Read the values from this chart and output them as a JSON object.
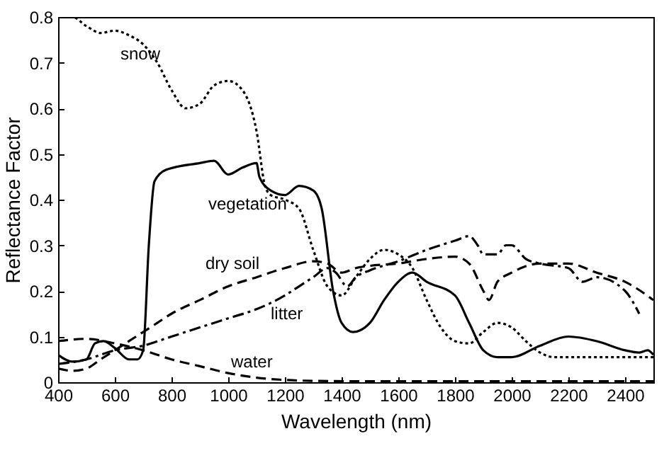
{
  "chart_data": {
    "type": "line",
    "xlabel": "Wavelength   (nm)",
    "ylabel": "Reflectance Factor",
    "xlim": [
      400,
      2500
    ],
    "xticks": [
      400,
      600,
      800,
      1000,
      1200,
      1400,
      1600,
      1800,
      2000,
      2200,
      2400
    ],
    "ylim": [
      0,
      0.8
    ],
    "yticks": [
      0,
      0.1,
      0.2,
      0.3,
      0.4,
      0.5,
      0.6,
      0.7,
      0.8
    ],
    "grid": false,
    "legend": false,
    "marker": "none",
    "series": [
      {
        "name": "snow",
        "color": "#000000",
        "line_style": "dotted",
        "x": [
          400,
          450,
          500,
          550,
          600,
          650,
          700,
          750,
          800,
          850,
          900,
          950,
          1000,
          1050,
          1100,
          1130,
          1150,
          1200,
          1250,
          1300,
          1350,
          1400,
          1450,
          1500,
          1550,
          1600,
          1650,
          1700,
          1750,
          1800,
          1850,
          1900,
          1950,
          2000,
          2050,
          2100,
          2150,
          2200,
          2300,
          2400,
          2500
        ],
        "values": [
          0.8,
          0.8,
          0.78,
          0.765,
          0.77,
          0.76,
          0.74,
          0.7,
          0.64,
          0.6,
          0.61,
          0.65,
          0.66,
          0.64,
          0.55,
          0.43,
          0.41,
          0.4,
          0.38,
          0.29,
          0.21,
          0.19,
          0.23,
          0.27,
          0.29,
          0.28,
          0.25,
          0.18,
          0.12,
          0.09,
          0.085,
          0.11,
          0.13,
          0.12,
          0.09,
          0.065,
          0.055,
          0.055,
          0.055,
          0.055,
          0.055
        ]
      },
      {
        "name": "vegetation",
        "color": "#000000",
        "line_style": "solid",
        "x": [
          400,
          450,
          500,
          530,
          560,
          600,
          650,
          680,
          700,
          720,
          740,
          780,
          900,
          950,
          1000,
          1050,
          1100,
          1110,
          1150,
          1200,
          1250,
          1300,
          1330,
          1370,
          1400,
          1440,
          1500,
          1550,
          1600,
          1650,
          1700,
          1800,
          1850,
          1900,
          1950,
          2000,
          2100,
          2200,
          2300,
          2400,
          2450,
          2480,
          2500
        ],
        "values": [
          0.06,
          0.045,
          0.05,
          0.085,
          0.09,
          0.075,
          0.05,
          0.05,
          0.07,
          0.3,
          0.44,
          0.465,
          0.48,
          0.485,
          0.455,
          0.47,
          0.48,
          0.45,
          0.42,
          0.41,
          0.43,
          0.42,
          0.38,
          0.2,
          0.13,
          0.11,
          0.13,
          0.18,
          0.22,
          0.24,
          0.22,
          0.19,
          0.13,
          0.07,
          0.055,
          0.055,
          0.08,
          0.1,
          0.09,
          0.07,
          0.065,
          0.07,
          0.06
        ]
      },
      {
        "name": "dry soil",
        "color": "#000000",
        "line_style": "dashed",
        "x": [
          400,
          450,
          500,
          550,
          600,
          650,
          700,
          750,
          800,
          900,
          1000,
          1100,
          1200,
          1300,
          1350,
          1400,
          1450,
          1500,
          1600,
          1700,
          1800,
          1850,
          1900,
          1920,
          1950,
          2000,
          2100,
          2200,
          2300,
          2400,
          2500
        ],
        "values": [
          0.03,
          0.025,
          0.03,
          0.05,
          0.07,
          0.09,
          0.11,
          0.13,
          0.15,
          0.18,
          0.21,
          0.23,
          0.25,
          0.265,
          0.26,
          0.24,
          0.25,
          0.255,
          0.26,
          0.27,
          0.275,
          0.26,
          0.2,
          0.18,
          0.22,
          0.24,
          0.26,
          0.26,
          0.24,
          0.22,
          0.18
        ]
      },
      {
        "name": "litter",
        "color": "#000000",
        "line_style": "dashdot",
        "x": [
          400,
          500,
          600,
          700,
          800,
          900,
          1000,
          1100,
          1200,
          1250,
          1300,
          1350,
          1380,
          1420,
          1450,
          1500,
          1600,
          1700,
          1800,
          1850,
          1880,
          1900,
          1950,
          1980,
          2000,
          2050,
          2100,
          2200,
          2250,
          2300,
          2400,
          2450
        ],
        "values": [
          0.04,
          0.05,
          0.07,
          0.08,
          0.1,
          0.12,
          0.14,
          0.16,
          0.19,
          0.21,
          0.23,
          0.25,
          0.24,
          0.21,
          0.23,
          0.245,
          0.265,
          0.29,
          0.31,
          0.32,
          0.3,
          0.28,
          0.28,
          0.3,
          0.3,
          0.27,
          0.26,
          0.25,
          0.22,
          0.23,
          0.2,
          0.15
        ]
      },
      {
        "name": "water",
        "color": "#000000",
        "line_style": "dashed",
        "x": [
          400,
          500,
          600,
          700,
          800,
          900,
          1000,
          1100,
          1200,
          1300,
          1500,
          2000,
          2500
        ],
        "values": [
          0.09,
          0.095,
          0.085,
          0.07,
          0.05,
          0.035,
          0.02,
          0.01,
          0.005,
          0.003,
          0.002,
          0.002,
          0.002
        ]
      }
    ]
  }
}
